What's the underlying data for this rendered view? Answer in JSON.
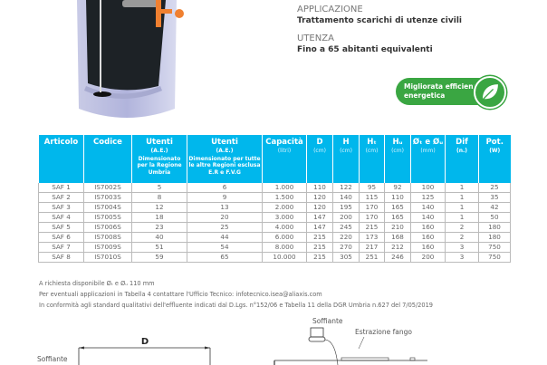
{
  "application": {
    "label": "APPLICAZIONE",
    "value": "Trattamento scarichi di utenze civili"
  },
  "usage": {
    "label": "UTENZA",
    "value": "Fino a 65 abitanti equivalenti"
  },
  "badge": {
    "line1": "Migliorata efficienza",
    "line2": "energetica",
    "icon": "leaf-icon",
    "color": "#3aa642"
  },
  "table": {
    "header_color": "#00b7ec",
    "headers": [
      {
        "title": "Articolo"
      },
      {
        "title": "Codice"
      },
      {
        "title": "Utenti",
        "sub": "(A.E.)",
        "desc": "Dimensionato per la Regione Umbria"
      },
      {
        "title": "Utenti",
        "sub": "(A.E.)",
        "desc": "Dimensionato per tutte le altre Regioni esclusa E.R e F.V.G"
      },
      {
        "title": "Capacità",
        "unit": "(litri)"
      },
      {
        "title": "D",
        "unit": "(cm)"
      },
      {
        "title": "H",
        "unit": "(cm)"
      },
      {
        "title": "Hₜ",
        "unit": "(cm)"
      },
      {
        "title": "Hᵤ",
        "unit": "(cm)"
      },
      {
        "title": "Øₜ e Øᵤ",
        "unit": "(mm)"
      },
      {
        "title": "Dif",
        "sub": "(n.)"
      },
      {
        "title": "Pot.",
        "sub": "(W)"
      }
    ],
    "rows": [
      [
        "SAF 1",
        "IS7002S",
        "5",
        "6",
        "1.000",
        "110",
        "122",
        "95",
        "92",
        "100",
        "1",
        "25"
      ],
      [
        "SAF 2",
        "IS7003S",
        "8",
        "9",
        "1.500",
        "120",
        "140",
        "115",
        "110",
        "125",
        "1",
        "35"
      ],
      [
        "SAF 3",
        "IS7004S",
        "12",
        "13",
        "2.000",
        "120",
        "195",
        "170",
        "165",
        "140",
        "1",
        "42"
      ],
      [
        "SAF 4",
        "IS7005S",
        "18",
        "20",
        "3.000",
        "147",
        "200",
        "170",
        "165",
        "140",
        "1",
        "50"
      ],
      [
        "SAF 5",
        "IS7006S",
        "23",
        "25",
        "4.000",
        "147",
        "245",
        "215",
        "210",
        "160",
        "2",
        "180"
      ],
      [
        "SAF 6",
        "IS7008S",
        "40",
        "44",
        "6.000",
        "215",
        "220",
        "173",
        "168",
        "160",
        "2",
        "180"
      ],
      [
        "SAF 7",
        "IS7009S",
        "51",
        "54",
        "8.000",
        "215",
        "270",
        "217",
        "212",
        "160",
        "3",
        "750"
      ],
      [
        "SAF 8",
        "IS7010S",
        "59",
        "65",
        "10.000",
        "215",
        "305",
        "251",
        "246",
        "200",
        "3",
        "750"
      ]
    ]
  },
  "notes": [
    "A richiesta disponibile Øₜ e Øᵤ 110 mm",
    "Per eventuali applicazioni in Tabella 4 contattare l'Ufficio Tecnico: infotecnico.isea@aliaxis.com",
    "In conformità agli standard qualitativi dell'effluente indicati dal D.Lgs. n°152/06 e Tabella 11 della DGR Umbria n.627 del 7/05/2019"
  ],
  "diagram": {
    "dim_label": "D",
    "blower_left": "Soffiante",
    "blower": "Soffiante",
    "sludge": "Estrazione fango"
  }
}
